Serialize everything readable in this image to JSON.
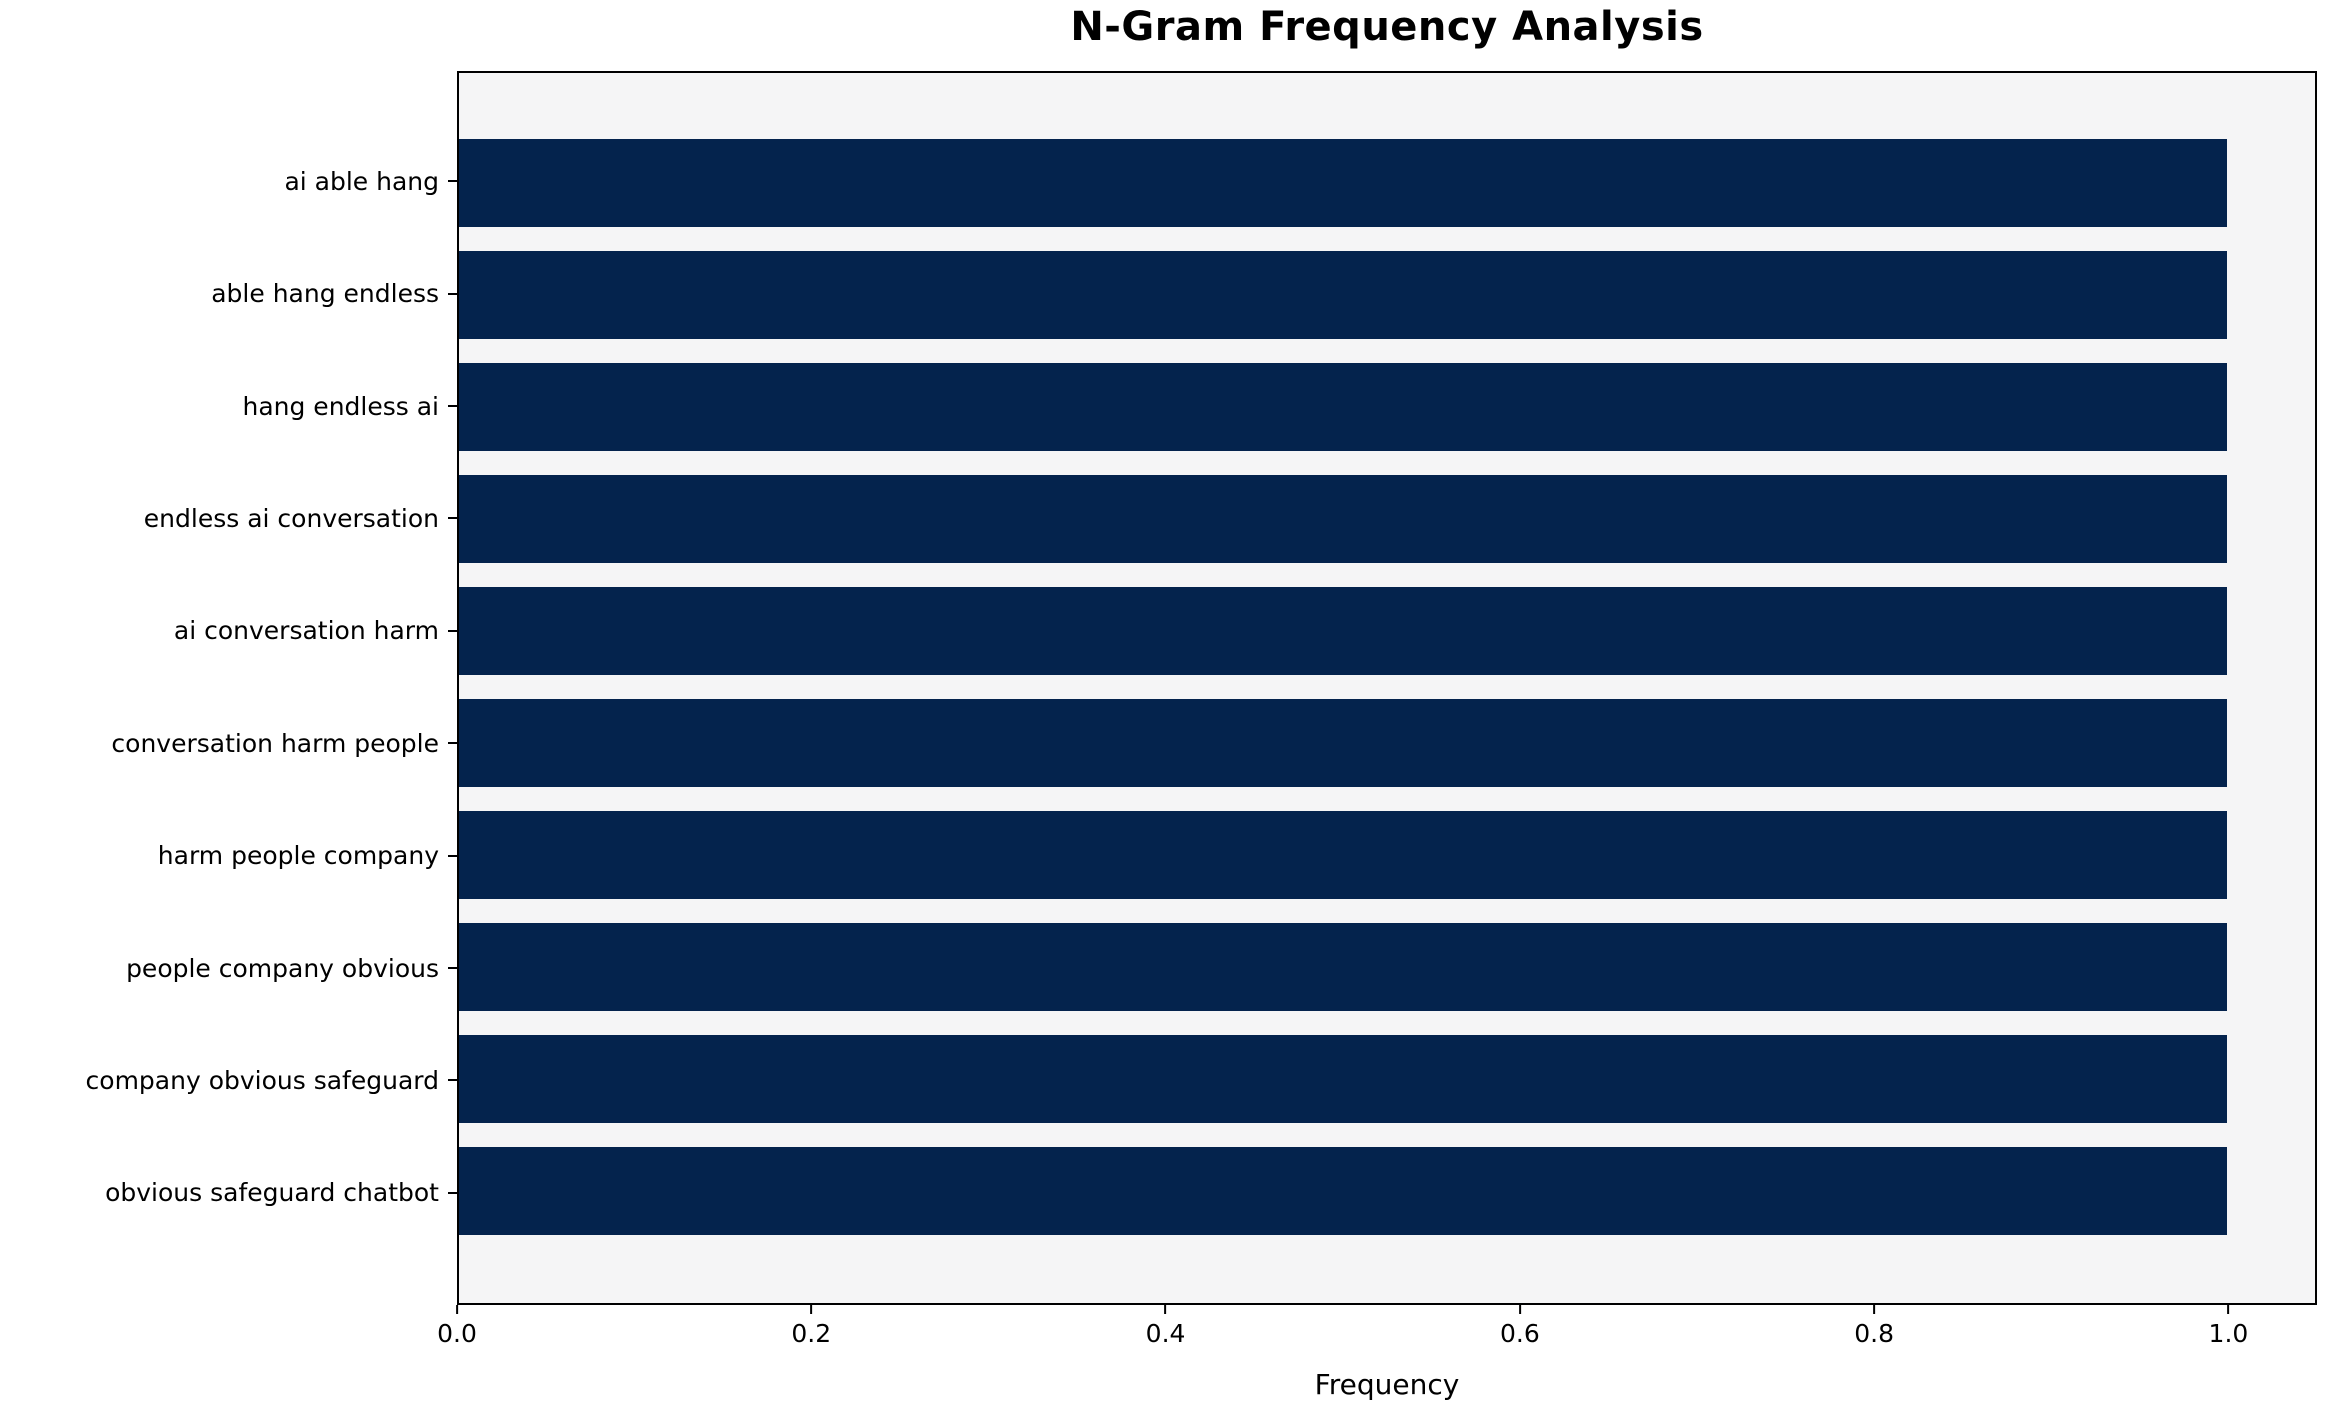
{
  "figure": {
    "background_color": "#ffffff",
    "plot_background_color": "#f5f5f6",
    "spine_color": "#000000"
  },
  "chart_data": {
    "type": "bar",
    "orientation": "horizontal",
    "title": "N-Gram Frequency Analysis",
    "xlabel": "Frequency",
    "ylabel": "",
    "categories": [
      "ai able hang",
      "able hang endless",
      "hang endless ai",
      "endless ai conversation",
      "ai conversation harm",
      "conversation harm people",
      "harm people company",
      "people company obvious",
      "company obvious safeguard",
      "obvious safeguard chatbot"
    ],
    "values": [
      1.0,
      1.0,
      1.0,
      1.0,
      1.0,
      1.0,
      1.0,
      1.0,
      1.0,
      1.0
    ],
    "bar_color": "#04234d",
    "xlim": [
      0,
      1.05
    ],
    "xticks": [
      0.0,
      0.2,
      0.4,
      0.6,
      0.8,
      1.0
    ],
    "xtick_labels": [
      "0.0",
      "0.2",
      "0.4",
      "0.6",
      "0.8",
      "1.0"
    ],
    "grid": false,
    "legend": null
  }
}
